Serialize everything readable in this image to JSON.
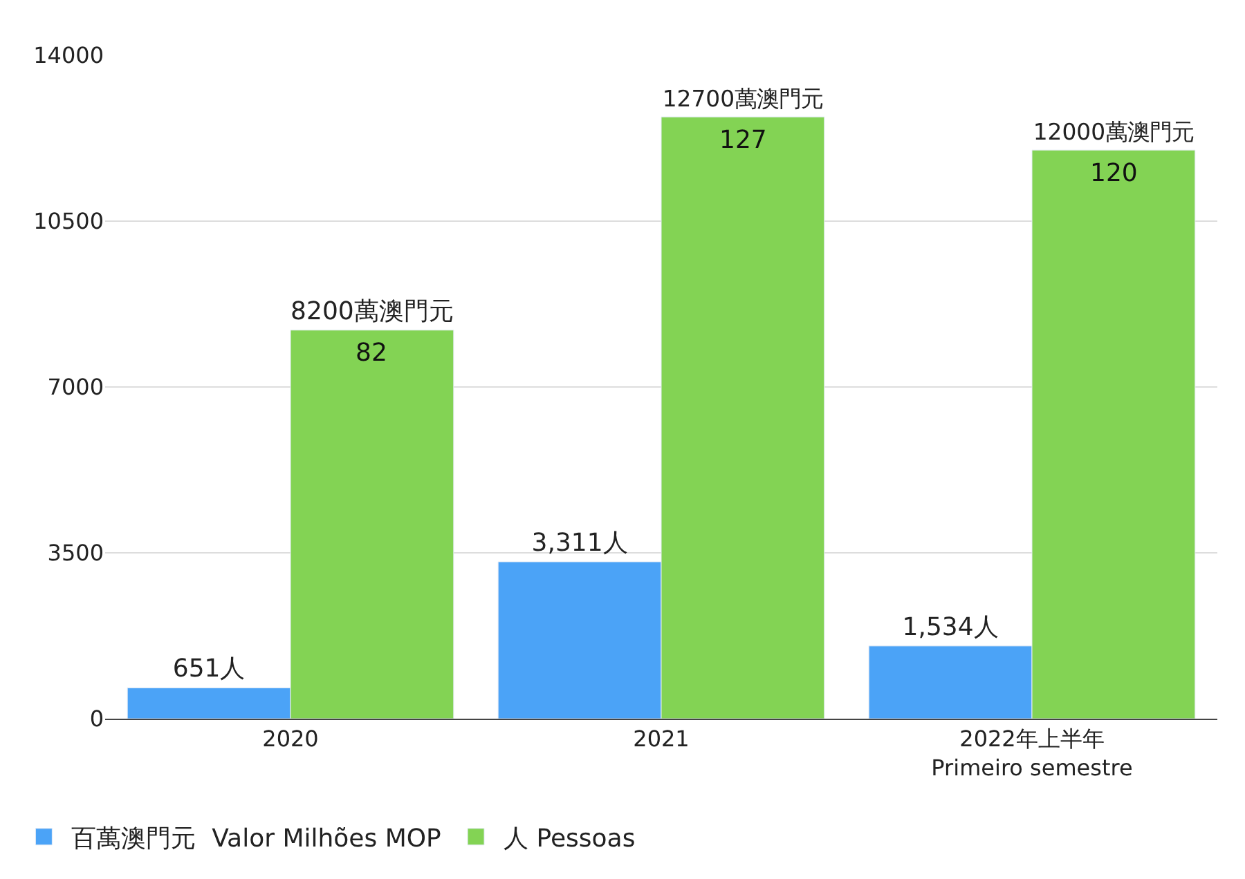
{
  "chart_data": {
    "type": "bar",
    "categories": [
      "2020",
      "2021",
      "2022年上半年\nPrimeiro semestre"
    ],
    "series": [
      {
        "name": "百萬澳門元  Valor Milhões MOP",
        "color": "#4ba3f7",
        "values": [
          651,
          3311,
          1534
        ],
        "value_labels": [
          "651人",
          "3,311人",
          "1,534人"
        ]
      },
      {
        "name": "人 Pessoas",
        "color": "#83d354",
        "values": [
          8200,
          12700,
          12000
        ],
        "value_labels": [
          "8200萬澳門元",
          "12700萬澳門元",
          "12000萬澳門元"
        ]
      }
    ],
    "annotations": [
      {
        "text": "82",
        "x": "2020",
        "y": 8200
      },
      {
        "text": "127",
        "x": "2021",
        "y": 12700
      },
      {
        "text": "120",
        "x": "2022年上半年\nPrimeiro semestre",
        "y": 12000
      }
    ],
    "ylim": [
      0,
      14000
    ],
    "yticks": [
      0,
      3500,
      7000,
      10500,
      14000
    ],
    "grid": "y",
    "legend": "bottom left"
  }
}
